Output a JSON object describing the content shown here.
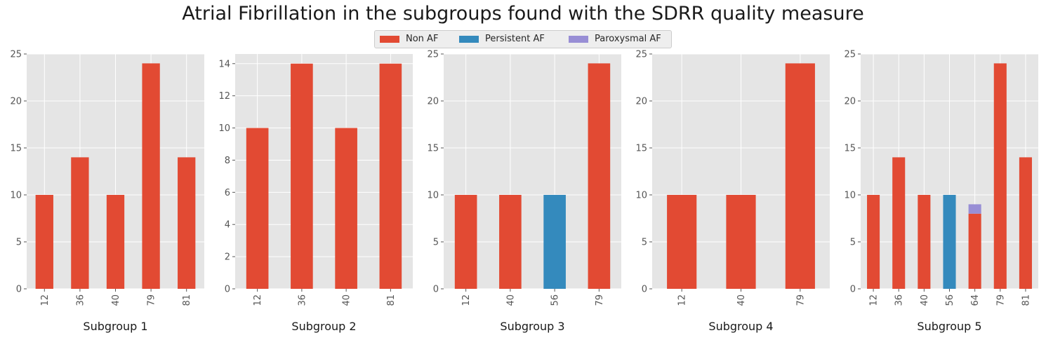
{
  "title": "Atrial Fibrillation in the subgroups found with the SDRR quality measure",
  "legend": [
    {
      "label": "Non AF",
      "color": "#E24A33"
    },
    {
      "label": "Persistent AF",
      "color": "#348ABD"
    },
    {
      "label": "Paroxysmal AF",
      "color": "#988ED5"
    }
  ],
  "chart_data": [
    {
      "type": "bar",
      "stacked": true,
      "xlabel": "Subgroup 1",
      "categories": [
        "12",
        "36",
        "40",
        "79",
        "81"
      ],
      "series": [
        {
          "name": "Non AF",
          "values": [
            10,
            14,
            10,
            24,
            14
          ]
        }
      ],
      "ylim": [
        0,
        25
      ],
      "yticks": [
        0,
        5,
        10,
        15,
        20,
        25
      ],
      "grid": true
    },
    {
      "type": "bar",
      "stacked": true,
      "xlabel": "Subgroup 2",
      "categories": [
        "12",
        "36",
        "40",
        "81"
      ],
      "series": [
        {
          "name": "Non AF",
          "values": [
            10,
            14,
            10,
            14
          ]
        }
      ],
      "ylim": [
        0,
        14.6
      ],
      "yticks": [
        0,
        2,
        4,
        6,
        8,
        10,
        12,
        14
      ],
      "grid": true
    },
    {
      "type": "bar",
      "stacked": true,
      "xlabel": "Subgroup 3",
      "categories": [
        "12",
        "40",
        "56",
        "79"
      ],
      "series": [
        {
          "name": "Non AF",
          "values": [
            10,
            10,
            0,
            24
          ]
        },
        {
          "name": "Persistent AF",
          "values": [
            0,
            0,
            10,
            0
          ]
        }
      ],
      "ylim": [
        0,
        25
      ],
      "yticks": [
        0,
        5,
        10,
        15,
        20,
        25
      ],
      "grid": true
    },
    {
      "type": "bar",
      "stacked": true,
      "xlabel": "Subgroup 4",
      "categories": [
        "12",
        "40",
        "79"
      ],
      "series": [
        {
          "name": "Non AF",
          "values": [
            10,
            10,
            24
          ]
        }
      ],
      "ylim": [
        0,
        25
      ],
      "yticks": [
        0,
        5,
        10,
        15,
        20,
        25
      ],
      "grid": true
    },
    {
      "type": "bar",
      "stacked": true,
      "xlabel": "Subgroup 5",
      "categories": [
        "12",
        "36",
        "40",
        "56",
        "64",
        "79",
        "81"
      ],
      "series": [
        {
          "name": "Non AF",
          "values": [
            10,
            14,
            10,
            0,
            8,
            24,
            14
          ]
        },
        {
          "name": "Persistent AF",
          "values": [
            0,
            0,
            0,
            10,
            0,
            0,
            0
          ]
        },
        {
          "name": "Paroxysmal AF",
          "values": [
            0,
            0,
            0,
            0,
            1,
            0,
            0
          ]
        }
      ],
      "ylim": [
        0,
        25
      ],
      "yticks": [
        0,
        5,
        10,
        15,
        20,
        25
      ],
      "grid": true
    }
  ]
}
